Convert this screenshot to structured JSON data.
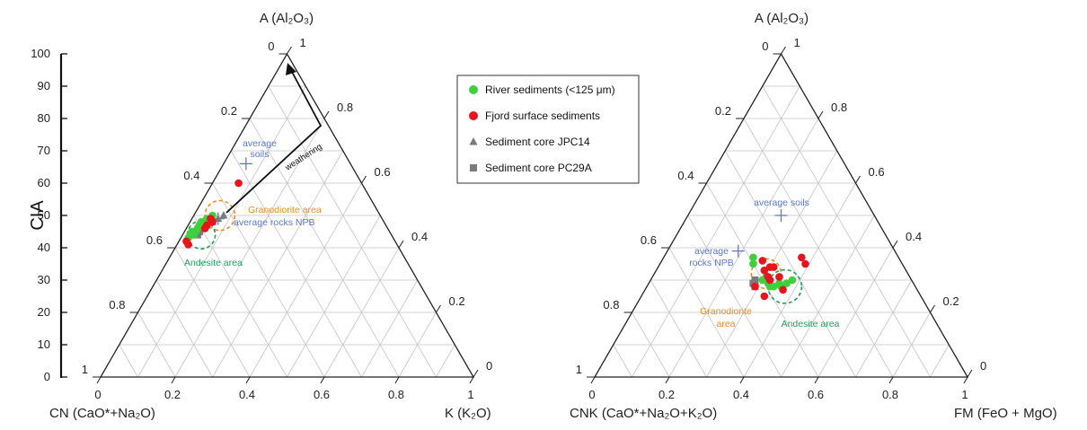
{
  "colors": {
    "river": "#3fcf3f",
    "fjord": "#e8141b",
    "core": "#7a7a7a",
    "avg": "#5b79c7",
    "granodiorite": "#f08a1c",
    "andesite": "#1f9d5a",
    "cia": "#111111"
  },
  "cia_axis": {
    "label": "CIA",
    "ticks": [
      "0",
      "10",
      "20",
      "30",
      "40",
      "50",
      "60",
      "70",
      "80",
      "90",
      "100"
    ]
  },
  "legend": [
    {
      "label": "River sediments (<125 μm)",
      "marker": "circle",
      "color": "#3fcf3f"
    },
    {
      "label": "Fjord surface sediments",
      "marker": "circle",
      "color": "#e8141b"
    },
    {
      "label": "Sediment core JPC14",
      "marker": "triangle",
      "color": "#7a7a7a"
    },
    {
      "label": "Sediment core PC29A",
      "marker": "square",
      "color": "#7a7a7a"
    }
  ],
  "chart_data": [
    {
      "type": "scatter",
      "chart_kind": "ternary",
      "apex_label": "A (Al₂O₃)",
      "left_label": "CN (CaO*+Na₂O)",
      "right_label": "K (K₂O)",
      "left_edge_ticks": [
        "1",
        "0.8",
        "0.6",
        "0.4",
        "0.2",
        "0"
      ],
      "right_edge_ticks": [
        "1",
        "0.8",
        "0.6",
        "0.4",
        "0.2",
        "0"
      ],
      "bottom_ticks": [
        "0",
        "0.2",
        "0.4",
        "0.6",
        "0.8",
        "1"
      ],
      "annotations": {
        "weathering": "weathering",
        "avg_soils": [
          "average",
          "soils"
        ],
        "avg_rocks": "average rocks NPB",
        "granodiorite": "Granodiorite area",
        "andesite": "Andesite area"
      },
      "reference_points": [
        {
          "name": "average soils",
          "A": 0.66,
          "K": 0.06
        },
        {
          "name": "average rocks NPB",
          "A": 0.49,
          "K": 0.07
        }
      ],
      "fields": [
        {
          "name": "Granodiorite area",
          "A": 0.5,
          "K": 0.07,
          "r": 0.08
        },
        {
          "name": "Andesite area",
          "A": 0.44,
          "K": 0.05,
          "r": 0.075
        }
      ],
      "series": [
        {
          "name": "River sediments (<125 μm)",
          "marker": "circle",
          "points": [
            {
              "A": 0.43,
              "K": 0.02
            },
            {
              "A": 0.44,
              "K": 0.02
            },
            {
              "A": 0.45,
              "K": 0.03
            },
            {
              "A": 0.46,
              "K": 0.03
            },
            {
              "A": 0.47,
              "K": 0.03
            },
            {
              "A": 0.48,
              "K": 0.04
            },
            {
              "A": 0.49,
              "K": 0.04
            },
            {
              "A": 0.5,
              "K": 0.05
            },
            {
              "A": 0.45,
              "K": 0.02
            },
            {
              "A": 0.47,
              "K": 0.04
            },
            {
              "A": 0.44,
              "K": 0.03
            },
            {
              "A": 0.48,
              "K": 0.03
            }
          ]
        },
        {
          "name": "Fjord surface sediments",
          "marker": "circle",
          "points": [
            {
              "A": 0.6,
              "K": 0.07
            },
            {
              "A": 0.41,
              "K": 0.03
            },
            {
              "A": 0.47,
              "K": 0.05
            },
            {
              "A": 0.48,
              "K": 0.06
            },
            {
              "A": 0.49,
              "K": 0.05
            },
            {
              "A": 0.46,
              "K": 0.05
            },
            {
              "A": 0.42,
              "K": 0.02
            }
          ]
        },
        {
          "name": "Sediment core JPC14",
          "marker": "triangle",
          "points": [
            {
              "A": 0.48,
              "K": 0.06
            },
            {
              "A": 0.49,
              "K": 0.07
            },
            {
              "A": 0.5,
              "K": 0.08
            }
          ]
        },
        {
          "name": "Sediment core PC29A",
          "marker": "square",
          "points": [
            {
              "A": 0.44,
              "K": 0.04
            },
            {
              "A": 0.45,
              "K": 0.04
            },
            {
              "A": 0.46,
              "K": 0.04
            },
            {
              "A": 0.47,
              "K": 0.05
            }
          ]
        }
      ]
    },
    {
      "type": "scatter",
      "chart_kind": "ternary",
      "apex_label": "A (Al₂O₃)",
      "left_label": "CNK (CaO*+Na₂O+K₂O)",
      "right_label": "FM (FeO + MgO)",
      "left_edge_ticks": [
        "1",
        "0.8",
        "0.6",
        "0.4",
        "0.2",
        "0"
      ],
      "right_edge_ticks": [
        "1",
        "0.8",
        "0.6",
        "0.4",
        "0.2",
        "0"
      ],
      "bottom_ticks": [
        "0",
        "0.2",
        "0.4",
        "0.6",
        "0.8",
        "1"
      ],
      "annotations": {
        "avg_soils": "average soils",
        "avg_rocks": [
          "average",
          "rocks NPB"
        ],
        "granodiorite": [
          "Granodiorite",
          "area"
        ],
        "andesite": "Andesite area"
      },
      "reference_points": [
        {
          "name": "average soils",
          "A": 0.5,
          "FM": 0.25
        },
        {
          "name": "average rocks NPB",
          "A": 0.39,
          "FM": 0.19
        }
      ],
      "fields": [
        {
          "name": "Granodiorite area",
          "A": 0.32,
          "FM": 0.3,
          "r": 0.08
        },
        {
          "name": "Andesite area",
          "A": 0.28,
          "FM": 0.37,
          "r": 0.09
        }
      ],
      "series": [
        {
          "name": "River sediments (<125 μm)",
          "marker": "circle",
          "points": [
            {
              "A": 0.37,
              "FM": 0.24
            },
            {
              "A": 0.35,
              "FM": 0.25
            },
            {
              "A": 0.3,
              "FM": 0.3
            },
            {
              "A": 0.29,
              "FM": 0.32
            },
            {
              "A": 0.28,
              "FM": 0.33
            },
            {
              "A": 0.28,
              "FM": 0.34
            },
            {
              "A": 0.29,
              "FM": 0.35
            },
            {
              "A": 0.28,
              "FM": 0.36
            },
            {
              "A": 0.29,
              "FM": 0.37
            },
            {
              "A": 0.3,
              "FM": 0.38
            }
          ]
        },
        {
          "name": "Fjord surface sediments",
          "marker": "circle",
          "points": [
            {
              "A": 0.36,
              "FM": 0.27
            },
            {
              "A": 0.34,
              "FM": 0.3
            },
            {
              "A": 0.34,
              "FM": 0.31
            },
            {
              "A": 0.33,
              "FM": 0.29
            },
            {
              "A": 0.31,
              "FM": 0.31
            },
            {
              "A": 0.3,
              "FM": 0.32
            },
            {
              "A": 0.35,
              "FM": 0.39
            },
            {
              "A": 0.37,
              "FM": 0.37
            },
            {
              "A": 0.25,
              "FM": 0.33
            },
            {
              "A": 0.27,
              "FM": 0.37
            },
            {
              "A": 0.28,
              "FM": 0.29
            },
            {
              "A": 0.31,
              "FM": 0.34
            }
          ]
        },
        {
          "name": "Sediment core JPC14",
          "marker": "triangle",
          "points": [
            {
              "A": 0.32,
              "FM": 0.3
            },
            {
              "A": 0.31,
              "FM": 0.31
            }
          ]
        },
        {
          "name": "Sediment core PC29A",
          "marker": "square",
          "points": [
            {
              "A": 0.29,
              "FM": 0.28
            },
            {
              "A": 0.28,
              "FM": 0.29
            },
            {
              "A": 0.3,
              "FM": 0.28
            }
          ]
        }
      ]
    }
  ]
}
